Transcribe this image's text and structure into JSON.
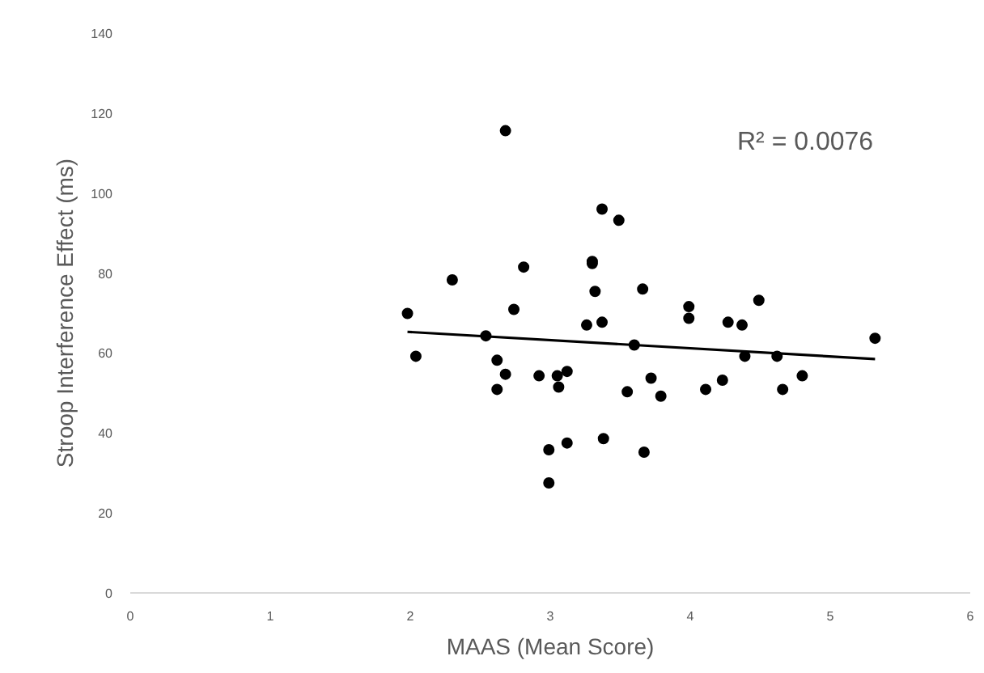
{
  "chart_data": {
    "type": "scatter",
    "xlabel": "MAAS (Mean Score)",
    "ylabel": "Stroop Interference Effect (ms)",
    "annotations": [
      "R² = 0.0076"
    ],
    "xlim": [
      0,
      6
    ],
    "xticks": [
      0,
      1,
      2,
      3,
      4,
      5,
      6
    ],
    "ylim": [
      0,
      140
    ],
    "yticks": [
      0,
      20,
      40,
      60,
      80,
      100,
      120,
      140
    ],
    "grid": false,
    "series": [
      {
        "color": "#000000",
        "x": [
          1.98,
          2.04,
          2.3,
          2.68,
          2.54,
          2.74,
          2.81,
          2.62,
          2.68,
          2.62,
          2.92,
          3.05,
          3.12,
          3.06,
          2.99,
          3.12,
          2.99,
          3.37,
          3.49,
          3.3,
          3.3,
          3.32,
          3.26,
          3.37,
          3.38,
          3.66,
          3.6,
          3.55,
          3.67,
          3.72,
          3.79,
          3.99,
          3.99,
          4.27,
          4.37,
          4.49,
          4.39,
          4.62,
          4.11,
          4.23,
          4.66,
          4.8,
          5.32
        ],
        "values": [
          69.9,
          59.2,
          78.3,
          115.6,
          64.3,
          70.9,
          81.5,
          58.2,
          54.7,
          50.9,
          54.3,
          54.3,
          55.4,
          51.5,
          35.8,
          37.5,
          27.5,
          96.0,
          93.2,
          82.4,
          82.9,
          75.4,
          67.0,
          67.7,
          38.6,
          76.0,
          62.0,
          50.3,
          35.2,
          53.7,
          49.2,
          71.6,
          68.7,
          67.7,
          67.0,
          73.2,
          59.2,
          59.2,
          50.9,
          53.2,
          50.9,
          54.3,
          63.7
        ]
      },
      {
        "type": "line",
        "color": "#000000",
        "x": [
          1.98,
          5.32
        ],
        "values": [
          65.3,
          58.5
        ]
      }
    ]
  }
}
